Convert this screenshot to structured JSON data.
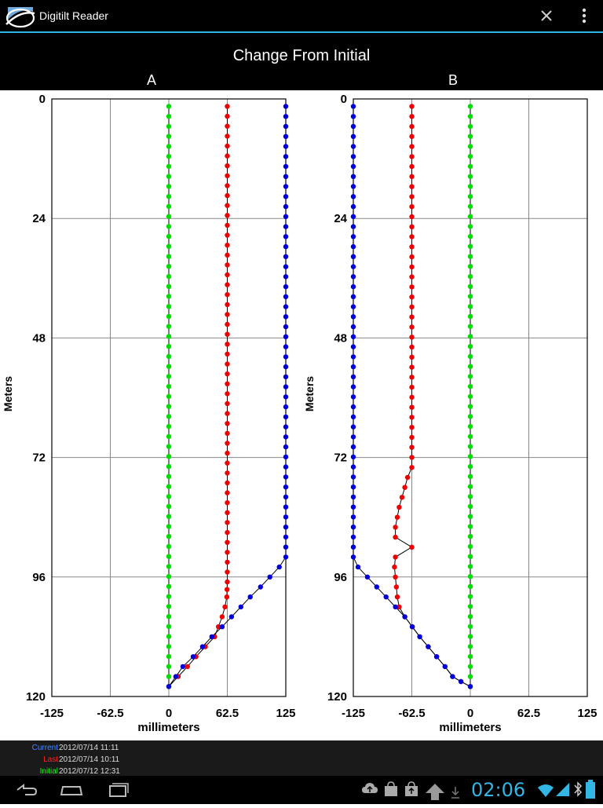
{
  "app": {
    "title": "Digitilt Reader"
  },
  "chart_title": "Change From Initial",
  "chart_data": [
    {
      "panel": "A",
      "type": "line",
      "xlabel": "millimeters",
      "ylabel": "Meters",
      "xlim": [
        -125,
        125
      ],
      "ylim": [
        0,
        120
      ],
      "y_inverted": true,
      "grid": true,
      "xticks": [
        "-125",
        "-62.5",
        "0",
        "62.5",
        "125"
      ],
      "yticks": [
        "0",
        "24",
        "48",
        "72",
        "96",
        "120"
      ],
      "series": [
        {
          "name": "Initial",
          "color": "#00dd00",
          "points": [
            [
              0,
              1.5
            ],
            [
              0,
              118
            ]
          ]
        },
        {
          "name": "Last",
          "color": "#ee0000",
          "points": [
            [
              62.5,
              1.5
            ],
            [
              62.5,
              97
            ],
            [
              62,
              100
            ],
            [
              60,
              102
            ],
            [
              57,
              104
            ],
            [
              49,
              108
            ],
            [
              39,
              110
            ],
            [
              29,
              112
            ],
            [
              20,
              114
            ],
            [
              10,
              116
            ],
            [
              0,
              118
            ]
          ]
        },
        {
          "name": "Current",
          "color": "#0000dd",
          "points": [
            [
              125,
              1.5
            ],
            [
              125,
              92
            ],
            [
              118,
              94
            ],
            [
              108,
              96
            ],
            [
              98,
              98
            ],
            [
              87,
              100
            ],
            [
              77,
              102
            ],
            [
              67,
              104
            ],
            [
              57,
              106
            ],
            [
              46,
              108
            ],
            [
              36,
              110
            ],
            [
              26,
              112
            ],
            [
              15,
              114
            ],
            [
              0,
              118
            ]
          ]
        }
      ]
    },
    {
      "panel": "B",
      "type": "line",
      "xlabel": "millimeters",
      "ylabel": "Meters",
      "xlim": [
        -125,
        125
      ],
      "ylim": [
        0,
        120
      ],
      "y_inverted": true,
      "grid": true,
      "xticks": [
        "-125",
        "-62.5",
        "0",
        "62.5",
        "125"
      ],
      "yticks": [
        "0",
        "24",
        "48",
        "72",
        "96",
        "120"
      ],
      "series": [
        {
          "name": "Initial",
          "color": "#00dd00",
          "points": [
            [
              0,
              1.5
            ],
            [
              0,
              118
            ]
          ]
        },
        {
          "name": "Last",
          "color": "#ee0000",
          "points": [
            [
              -62.5,
              1.5
            ],
            [
              -62.5,
              74
            ],
            [
              -67,
              76
            ],
            [
              -70,
              78
            ],
            [
              -73,
              80
            ],
            [
              -76,
              82
            ],
            [
              -78,
              84
            ],
            [
              -80,
              86
            ],
            [
              -80,
              88
            ],
            [
              -62.5,
              90
            ],
            [
              -80,
              92
            ],
            [
              -81,
              94
            ],
            [
              -80,
              96
            ],
            [
              -79,
              98
            ],
            [
              -78,
              100
            ],
            [
              -76,
              102
            ],
            [
              -70,
              104
            ],
            [
              -62,
              106
            ],
            [
              -54,
              108
            ],
            [
              -45,
              110
            ],
            [
              -36,
              112
            ],
            [
              -27,
              114
            ],
            [
              -19,
              116
            ],
            [
              -10,
              117
            ],
            [
              0,
              118
            ]
          ]
        },
        {
          "name": "Current",
          "color": "#0000dd",
          "points": [
            [
              -125,
              1.5
            ],
            [
              -125,
              92
            ],
            [
              -120,
              94
            ],
            [
              -110,
              96
            ],
            [
              -100,
              98
            ],
            [
              -90,
              100
            ],
            [
              -80,
              102
            ],
            [
              -70,
              104
            ],
            [
              -62,
              106
            ],
            [
              -54,
              108
            ],
            [
              -45,
              110
            ],
            [
              -36,
              112
            ],
            [
              -27,
              114
            ],
            [
              -19,
              116
            ],
            [
              -10,
              117
            ],
            [
              0,
              118
            ]
          ]
        }
      ]
    }
  ],
  "legend": [
    {
      "label": "Current",
      "value": "2012/07/14 11:11",
      "color": "#4488ff"
    },
    {
      "label": "Last",
      "value": "2012/07/14 10:11",
      "color": "#ff2222"
    },
    {
      "label": "Initial",
      "value": "2012/07/12 12:31",
      "color": "#22ee22"
    }
  ],
  "status": {
    "clock": "02:06"
  }
}
